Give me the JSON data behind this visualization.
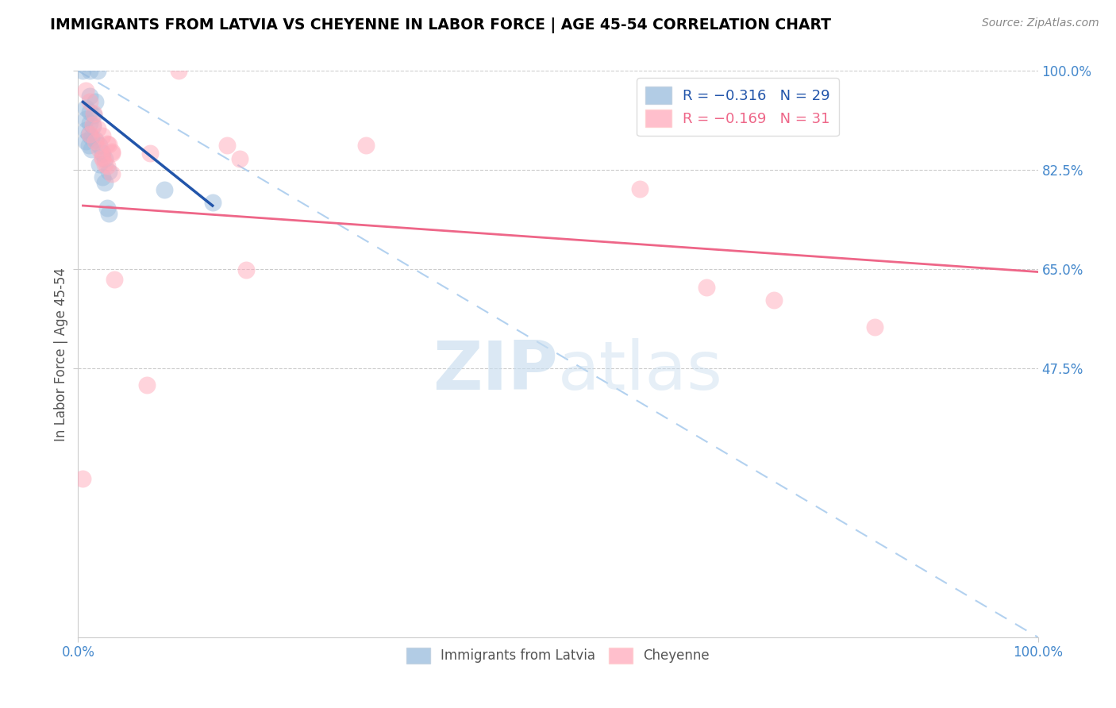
{
  "title": "IMMIGRANTS FROM LATVIA VS CHEYENNE IN LABOR FORCE | AGE 45-54 CORRELATION CHART",
  "source": "Source: ZipAtlas.com",
  "ylabel": "In Labor Force | Age 45-54",
  "xlim": [
    0.0,
    1.0
  ],
  "ylim": [
    0.0,
    1.0
  ],
  "xtick_positions": [
    0.0,
    1.0
  ],
  "xtick_labels": [
    "0.0%",
    "100.0%"
  ],
  "right_ytick_labels": [
    "100.0%",
    "82.5%",
    "65.0%",
    "47.5%"
  ],
  "right_ytick_positions": [
    1.0,
    0.825,
    0.65,
    0.475
  ],
  "legend_r1": "R = −0.316",
  "legend_n1": "N = 29",
  "legend_r2": "R = −0.169",
  "legend_n2": "N = 31",
  "blue_color": "#99BBDD",
  "pink_color": "#FFAABB",
  "blue_fill": "#99BBDD",
  "pink_fill": "#FFAABB",
  "blue_line_color": "#2255AA",
  "pink_line_color": "#EE6688",
  "diag_line_color": "#AACCEE",
  "watermark_zip": "ZIP",
  "watermark_atlas": "atlas",
  "scatter_blue": [
    [
      0.005,
      1.0
    ],
    [
      0.012,
      1.0
    ],
    [
      0.02,
      1.0
    ],
    [
      0.012,
      0.955
    ],
    [
      0.018,
      0.945
    ],
    [
      0.008,
      0.935
    ],
    [
      0.012,
      0.928
    ],
    [
      0.016,
      0.922
    ],
    [
      0.008,
      0.915
    ],
    [
      0.012,
      0.908
    ],
    [
      0.015,
      0.902
    ],
    [
      0.008,
      0.895
    ],
    [
      0.011,
      0.888
    ],
    [
      0.014,
      0.882
    ],
    [
      0.008,
      0.875
    ],
    [
      0.011,
      0.868
    ],
    [
      0.014,
      0.862
    ],
    [
      0.018,
      0.878
    ],
    [
      0.022,
      0.868
    ],
    [
      0.025,
      0.855
    ],
    [
      0.028,
      0.845
    ],
    [
      0.022,
      0.835
    ],
    [
      0.032,
      0.822
    ],
    [
      0.025,
      0.812
    ],
    [
      0.028,
      0.802
    ],
    [
      0.03,
      0.758
    ],
    [
      0.032,
      0.748
    ],
    [
      0.09,
      0.79
    ],
    [
      0.14,
      0.768
    ]
  ],
  "scatter_pink": [
    [
      0.005,
      0.28
    ],
    [
      0.008,
      0.965
    ],
    [
      0.012,
      0.945
    ],
    [
      0.016,
      0.925
    ],
    [
      0.015,
      0.905
    ],
    [
      0.012,
      0.888
    ],
    [
      0.018,
      0.875
    ],
    [
      0.022,
      0.862
    ],
    [
      0.025,
      0.848
    ],
    [
      0.028,
      0.835
    ],
    [
      0.02,
      0.898
    ],
    [
      0.025,
      0.885
    ],
    [
      0.03,
      0.872
    ],
    [
      0.035,
      0.858
    ],
    [
      0.025,
      0.845
    ],
    [
      0.03,
      0.832
    ],
    [
      0.035,
      0.818
    ],
    [
      0.032,
      0.87
    ],
    [
      0.035,
      0.855
    ],
    [
      0.038,
      0.632
    ],
    [
      0.075,
      0.855
    ],
    [
      0.072,
      0.445
    ],
    [
      0.105,
      1.0
    ],
    [
      0.155,
      0.868
    ],
    [
      0.168,
      0.845
    ],
    [
      0.175,
      0.648
    ],
    [
      0.3,
      0.868
    ],
    [
      0.585,
      0.792
    ],
    [
      0.655,
      0.618
    ],
    [
      0.725,
      0.595
    ],
    [
      0.83,
      0.548
    ]
  ],
  "blue_trend_x": [
    0.005,
    0.14
  ],
  "blue_trend_y": [
    0.945,
    0.762
  ],
  "pink_trend_x": [
    0.005,
    1.0
  ],
  "pink_trend_y": [
    0.762,
    0.645
  ]
}
